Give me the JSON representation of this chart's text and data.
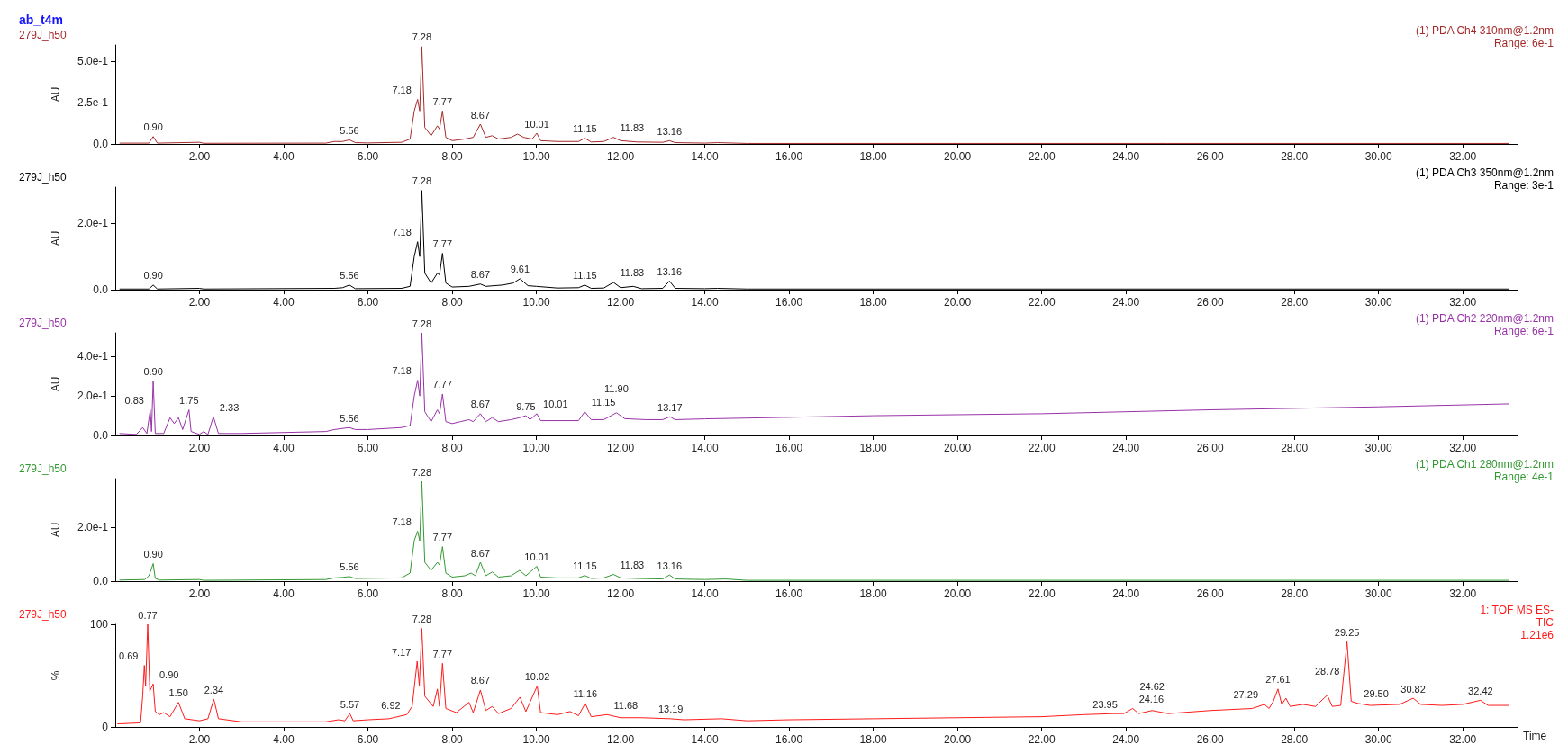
{
  "chart_data": [
    {
      "type": "line",
      "title": "ab_t4m",
      "subtitle": "279J_h50",
      "ylabel": "AU",
      "xlim": [
        0,
        33.3
      ],
      "ylim": [
        0,
        0.6
      ],
      "xticks": [
        {
          "value": 2,
          "label": "2.00"
        },
        {
          "value": 4,
          "label": "4.00"
        },
        {
          "value": 6,
          "label": "6.00"
        },
        {
          "value": 8,
          "label": "8.00"
        },
        {
          "value": 10,
          "label": "10.00"
        },
        {
          "value": 12,
          "label": "12.00"
        },
        {
          "value": 14,
          "label": "14.00"
        },
        {
          "value": 16,
          "label": "16.00"
        },
        {
          "value": 18,
          "label": "18.00"
        },
        {
          "value": 20,
          "label": "20.00"
        },
        {
          "value": 22,
          "label": "22.00"
        },
        {
          "value": 24,
          "label": "24.00"
        },
        {
          "value": 26,
          "label": "26.00"
        },
        {
          "value": 28,
          "label": "28.00"
        },
        {
          "value": 30,
          "label": "30.00"
        },
        {
          "value": 32,
          "label": "32.00"
        }
      ],
      "yticks": [
        {
          "value": 0,
          "label": "0.0"
        },
        {
          "value": 0.25,
          "label": "2.5e-1"
        },
        {
          "value": 0.5,
          "label": "5.0e-1"
        }
      ],
      "grid": false,
      "marker": "none",
      "line_style": "solid",
      "series": [
        {
          "color": "#a52a2a",
          "x": [
            0.1,
            0.8,
            0.9,
            1.0,
            2.0,
            2.1,
            5.0,
            5.2,
            5.4,
            5.56,
            5.7,
            6.0,
            6.8,
            7.0,
            7.1,
            7.18,
            7.23,
            7.28,
            7.35,
            7.5,
            7.65,
            7.7,
            7.77,
            7.85,
            8.0,
            8.3,
            8.5,
            8.67,
            8.8,
            8.95,
            9.1,
            9.4,
            9.55,
            9.7,
            9.9,
            10.01,
            10.1,
            10.5,
            11.0,
            11.15,
            11.3,
            11.6,
            11.83,
            12.0,
            12.4,
            13.0,
            13.16,
            13.3,
            14.0,
            14.3,
            15,
            20,
            25,
            33.1
          ],
          "values": [
            0.005,
            0.005,
            0.045,
            0.005,
            0.01,
            0.004,
            0.005,
            0.015,
            0.015,
            0.025,
            0.008,
            0.006,
            0.01,
            0.03,
            0.2,
            0.27,
            0.2,
            0.59,
            0.1,
            0.05,
            0.11,
            0.09,
            0.2,
            0.04,
            0.02,
            0.03,
            0.04,
            0.12,
            0.04,
            0.05,
            0.03,
            0.04,
            0.06,
            0.04,
            0.03,
            0.065,
            0.02,
            0.015,
            0.015,
            0.035,
            0.012,
            0.015,
            0.04,
            0.02,
            0.012,
            0.01,
            0.02,
            0.008,
            0.005,
            0.008,
            0.003,
            0.003,
            0.003,
            0.003
          ]
        }
      ],
      "annotations": [
        "(1) PDA Ch4 310nm@1.2nm",
        "Range: 6e-1",
        {
          "text": "0.90",
          "x": 0.9,
          "y": 0.045
        },
        {
          "text": "5.56",
          "x": 5.56,
          "y": 0.025
        },
        {
          "text": "7.18",
          "x": 7.18,
          "y": 0.27
        },
        {
          "text": "7.28",
          "x": 7.28,
          "y": 0.59
        },
        {
          "text": "7.77",
          "x": 7.77,
          "y": 0.2
        },
        {
          "text": "8.67",
          "x": 8.67,
          "y": 0.12
        },
        {
          "text": "10.01",
          "x": 10.01,
          "y": 0.065
        },
        {
          "text": "11.15",
          "x": 11.15,
          "y": 0.035
        },
        {
          "text": "11.83",
          "x": 11.83,
          "y": 0.04
        },
        {
          "text": "13.16",
          "x": 13.16,
          "y": 0.02
        }
      ]
    },
    {
      "type": "line",
      "subtitle": "279J_h50",
      "ylabel": "AU",
      "xlim": [
        0,
        33.3
      ],
      "ylim": [
        0,
        0.31
      ],
      "xticks": [
        {
          "value": 2,
          "label": "2.00"
        },
        {
          "value": 4,
          "label": "4.00"
        },
        {
          "value": 6,
          "label": "6.00"
        },
        {
          "value": 8,
          "label": "8.00"
        },
        {
          "value": 10,
          "label": "10.00"
        },
        {
          "value": 12,
          "label": "12.00"
        },
        {
          "value": 14,
          "label": "14.00"
        },
        {
          "value": 16,
          "label": "16.00"
        },
        {
          "value": 18,
          "label": "18.00"
        },
        {
          "value": 20,
          "label": "20.00"
        },
        {
          "value": 22,
          "label": "22.00"
        },
        {
          "value": 24,
          "label": "24.00"
        },
        {
          "value": 26,
          "label": "26.00"
        },
        {
          "value": 28,
          "label": "28.00"
        },
        {
          "value": 30,
          "label": "30.00"
        },
        {
          "value": 32,
          "label": "32.00"
        }
      ],
      "yticks": [
        {
          "value": 0,
          "label": "0.0"
        },
        {
          "value": 0.2,
          "label": "2.0e-1"
        }
      ],
      "grid": false,
      "marker": "none",
      "line_style": "solid",
      "series": [
        {
          "color": "#000000",
          "x": [
            0.1,
            0.8,
            0.9,
            1.0,
            2.0,
            2.1,
            5.2,
            5.4,
            5.56,
            5.7,
            6.8,
            7.0,
            7.1,
            7.18,
            7.23,
            7.28,
            7.35,
            7.5,
            7.65,
            7.7,
            7.77,
            7.85,
            8.0,
            8.4,
            8.67,
            8.8,
            9.2,
            9.45,
            9.61,
            9.8,
            10.0,
            10.5,
            11.0,
            11.15,
            11.3,
            11.6,
            11.83,
            12.0,
            12.3,
            12.5,
            13.0,
            13.16,
            13.3,
            14.0,
            14.3,
            15,
            33.1
          ],
          "values": [
            0.002,
            0.002,
            0.014,
            0.002,
            0.004,
            0.002,
            0.004,
            0.006,
            0.014,
            0.003,
            0.004,
            0.01,
            0.1,
            0.145,
            0.1,
            0.3,
            0.05,
            0.02,
            0.05,
            0.045,
            0.11,
            0.02,
            0.008,
            0.01,
            0.017,
            0.01,
            0.014,
            0.02,
            0.033,
            0.012,
            0.01,
            0.005,
            0.006,
            0.014,
            0.004,
            0.005,
            0.022,
            0.006,
            0.01,
            0.003,
            0.004,
            0.026,
            0.004,
            0.003,
            0.004,
            0.002,
            0.002
          ]
        }
      ],
      "annotations": [
        "(1) PDA Ch3 350nm@1.2nm",
        "Range: 3e-1",
        {
          "text": "0.90",
          "x": 0.9,
          "y": 0.014
        },
        {
          "text": "5.56",
          "x": 5.56,
          "y": 0.014
        },
        {
          "text": "7.18",
          "x": 7.18,
          "y": 0.145
        },
        {
          "text": "7.28",
          "x": 7.28,
          "y": 0.3
        },
        {
          "text": "7.77",
          "x": 7.77,
          "y": 0.11
        },
        {
          "text": "8.67",
          "x": 8.67,
          "y": 0.017
        },
        {
          "text": "9.61",
          "x": 9.61,
          "y": 0.033
        },
        {
          "text": "11.15",
          "x": 11.15,
          "y": 0.014
        },
        {
          "text": "11.83",
          "x": 11.83,
          "y": 0.022
        },
        {
          "text": "13.16",
          "x": 13.16,
          "y": 0.026
        }
      ]
    },
    {
      "type": "line",
      "subtitle": "279J_h50",
      "ylabel": "AU",
      "xlim": [
        0,
        33.3
      ],
      "ylim": [
        0,
        0.52
      ],
      "xticks": [
        {
          "value": 2,
          "label": "2.00"
        },
        {
          "value": 4,
          "label": "4.00"
        },
        {
          "value": 6,
          "label": "6.00"
        },
        {
          "value": 8,
          "label": "8.00"
        },
        {
          "value": 10,
          "label": "10.00"
        },
        {
          "value": 12,
          "label": "12.00"
        },
        {
          "value": 14,
          "label": "14.00"
        },
        {
          "value": 16,
          "label": "16.00"
        },
        {
          "value": 18,
          "label": "18.00"
        },
        {
          "value": 20,
          "label": "20.00"
        },
        {
          "value": 22,
          "label": "22.00"
        },
        {
          "value": 24,
          "label": "24.00"
        },
        {
          "value": 26,
          "label": "26.00"
        },
        {
          "value": 28,
          "label": "28.00"
        },
        {
          "value": 30,
          "label": "30.00"
        },
        {
          "value": 32,
          "label": "32.00"
        }
      ],
      "yticks": [
        {
          "value": 0,
          "label": "0.0"
        },
        {
          "value": 0.2,
          "label": "2.0e-1"
        },
        {
          "value": 0.4,
          "label": "4.0e-1"
        }
      ],
      "grid": false,
      "marker": "none",
      "line_style": "solid",
      "series": [
        {
          "color": "#9932a8",
          "x": [
            0.1,
            0.5,
            0.65,
            0.75,
            0.83,
            0.86,
            0.9,
            0.95,
            1.15,
            1.3,
            1.4,
            1.5,
            1.6,
            1.75,
            1.8,
            2.0,
            2.1,
            2.2,
            2.33,
            2.45,
            3.0,
            4.0,
            5.0,
            5.2,
            5.56,
            5.7,
            6.0,
            6.8,
            7.0,
            7.1,
            7.18,
            7.23,
            7.28,
            7.35,
            7.5,
            7.65,
            7.7,
            7.77,
            7.85,
            8.0,
            8.2,
            8.4,
            8.5,
            8.67,
            8.8,
            8.95,
            9.1,
            9.4,
            9.6,
            9.75,
            9.85,
            10.01,
            10.1,
            10.5,
            11.0,
            11.15,
            11.3,
            11.6,
            11.9,
            12.1,
            12.6,
            13.0,
            13.17,
            13.3,
            14.0,
            18,
            22,
            26,
            30,
            33.1
          ],
          "values": [
            0.01,
            0.005,
            0.04,
            0.01,
            0.13,
            0.02,
            0.275,
            0.01,
            0.01,
            0.09,
            0.06,
            0.09,
            0.03,
            0.13,
            0.02,
            0.005,
            0.02,
            0.005,
            0.095,
            0.01,
            0.01,
            0.015,
            0.02,
            0.03,
            0.04,
            0.03,
            0.03,
            0.04,
            0.05,
            0.2,
            0.28,
            0.2,
            0.52,
            0.12,
            0.07,
            0.13,
            0.11,
            0.21,
            0.07,
            0.06,
            0.07,
            0.08,
            0.07,
            0.11,
            0.07,
            0.09,
            0.07,
            0.08,
            0.09,
            0.1,
            0.08,
            0.11,
            0.075,
            0.075,
            0.075,
            0.12,
            0.08,
            0.08,
            0.115,
            0.085,
            0.08,
            0.08,
            0.095,
            0.08,
            0.084,
            0.1,
            0.11,
            0.13,
            0.145,
            0.16
          ]
        }
      ],
      "annotations": [
        "(1) PDA Ch2 220nm@1.2nm",
        "Range: 6e-1",
        {
          "text": "0.83",
          "x": 0.83,
          "y": 0.13
        },
        {
          "text": "0.90",
          "x": 0.9,
          "y": 0.275
        },
        {
          "text": "1.75",
          "x": 1.75,
          "y": 0.13
        },
        {
          "text": "2.33",
          "x": 2.33,
          "y": 0.095
        },
        {
          "text": "5.56",
          "x": 5.56,
          "y": 0.04
        },
        {
          "text": "7.18",
          "x": 7.18,
          "y": 0.28
        },
        {
          "text": "7.28",
          "x": 7.28,
          "y": 0.52
        },
        {
          "text": "7.77",
          "x": 7.77,
          "y": 0.21
        },
        {
          "text": "8.67",
          "x": 8.67,
          "y": 0.11
        },
        {
          "text": "9.75",
          "x": 9.75,
          "y": 0.1
        },
        {
          "text": "10.01",
          "x": 10.01,
          "y": 0.11
        },
        {
          "text": "11.15",
          "x": 11.15,
          "y": 0.12
        },
        {
          "text": "11.90",
          "x": 11.9,
          "y": 0.115
        },
        {
          "text": "13.17",
          "x": 13.17,
          "y": 0.095
        }
      ]
    },
    {
      "type": "line",
      "subtitle": "279J_h50",
      "ylabel": "AU",
      "xlim": [
        0,
        33.3
      ],
      "ylim": [
        0,
        0.38
      ],
      "xticks": [
        {
          "value": 2,
          "label": "2.00"
        },
        {
          "value": 4,
          "label": "4.00"
        },
        {
          "value": 6,
          "label": "6.00"
        },
        {
          "value": 8,
          "label": "8.00"
        },
        {
          "value": 10,
          "label": "10.00"
        },
        {
          "value": 12,
          "label": "12.00"
        },
        {
          "value": 14,
          "label": "14.00"
        },
        {
          "value": 16,
          "label": "16.00"
        },
        {
          "value": 18,
          "label": "18.00"
        },
        {
          "value": 20,
          "label": "20.00"
        },
        {
          "value": 22,
          "label": "22.00"
        },
        {
          "value": 24,
          "label": "24.00"
        },
        {
          "value": 26,
          "label": "26.00"
        },
        {
          "value": 28,
          "label": "28.00"
        },
        {
          "value": 30,
          "label": "30.00"
        },
        {
          "value": 32,
          "label": "32.00"
        }
      ],
      "yticks": [
        {
          "value": 0,
          "label": "0.0"
        },
        {
          "value": 0.2,
          "label": "2.0e-1"
        }
      ],
      "grid": false,
      "marker": "none",
      "line_style": "solid",
      "series": [
        {
          "color": "#339933",
          "x": [
            0.1,
            0.7,
            0.8,
            0.9,
            0.95,
            1.05,
            2.0,
            2.1,
            5.0,
            5.2,
            5.4,
            5.56,
            5.7,
            6.8,
            7.0,
            7.1,
            7.18,
            7.23,
            7.28,
            7.35,
            7.5,
            7.65,
            7.7,
            7.77,
            7.85,
            8.0,
            8.3,
            8.45,
            8.55,
            8.67,
            8.8,
            8.95,
            9.1,
            9.4,
            9.6,
            9.75,
            10.01,
            10.1,
            10.5,
            11.0,
            11.15,
            11.3,
            11.6,
            11.83,
            12.0,
            12.4,
            13.0,
            13.16,
            13.3,
            14.0,
            14.5,
            15,
            33.1
          ],
          "values": [
            0.004,
            0.006,
            0.02,
            0.065,
            0.01,
            0.004,
            0.006,
            0.003,
            0.006,
            0.012,
            0.014,
            0.017,
            0.01,
            0.012,
            0.03,
            0.15,
            0.185,
            0.15,
            0.37,
            0.07,
            0.04,
            0.07,
            0.06,
            0.128,
            0.03,
            0.015,
            0.02,
            0.03,
            0.02,
            0.07,
            0.02,
            0.034,
            0.015,
            0.02,
            0.04,
            0.02,
            0.055,
            0.015,
            0.012,
            0.012,
            0.021,
            0.01,
            0.012,
            0.025,
            0.012,
            0.01,
            0.008,
            0.023,
            0.008,
            0.006,
            0.008,
            0.003,
            0.003
          ]
        }
      ],
      "annotations": [
        "(1) PDA Ch1 280nm@1.2nm",
        "Range: 4e-1",
        {
          "text": "0.90",
          "x": 0.9,
          "y": 0.065
        },
        {
          "text": "5.56",
          "x": 5.56,
          "y": 0.017
        },
        {
          "text": "7.18",
          "x": 7.18,
          "y": 0.185
        },
        {
          "text": "7.28",
          "x": 7.28,
          "y": 0.37
        },
        {
          "text": "7.77",
          "x": 7.77,
          "y": 0.128
        },
        {
          "text": "8.67",
          "x": 8.67,
          "y": 0.07
        },
        {
          "text": "10.01",
          "x": 10.01,
          "y": 0.055
        },
        {
          "text": "11.15",
          "x": 11.15,
          "y": 0.021
        },
        {
          "text": "11.83",
          "x": 11.83,
          "y": 0.025
        },
        {
          "text": "13.16",
          "x": 13.16,
          "y": 0.023
        }
      ]
    },
    {
      "type": "line",
      "subtitle": "279J_h50",
      "ylabel": "%",
      "xlabel": "Time",
      "xlim": [
        0,
        33.3
      ],
      "ylim": [
        0,
        100
      ],
      "xticks": [
        {
          "value": 2,
          "label": "2.00"
        },
        {
          "value": 4,
          "label": "4.00"
        },
        {
          "value": 6,
          "label": "6.00"
        },
        {
          "value": 8,
          "label": "8.00"
        },
        {
          "value": 10,
          "label": "10.00"
        },
        {
          "value": 12,
          "label": "12.00"
        },
        {
          "value": 14,
          "label": "14.00"
        },
        {
          "value": 16,
          "label": "16.00"
        },
        {
          "value": 18,
          "label": "18.00"
        },
        {
          "value": 20,
          "label": "20.00"
        },
        {
          "value": 22,
          "label": "22.00"
        },
        {
          "value": 24,
          "label": "24.00"
        },
        {
          "value": 26,
          "label": "26.00"
        },
        {
          "value": 28,
          "label": "28.00"
        },
        {
          "value": 30,
          "label": "30.00"
        },
        {
          "value": 32,
          "label": "32.00"
        }
      ],
      "yticks": [
        0,
        100
      ],
      "grid": false,
      "marker": "none",
      "line_style": "solid",
      "series": [
        {
          "color": "#ff1a1a",
          "x": [
            0.05,
            0.6,
            0.65,
            0.69,
            0.72,
            0.77,
            0.82,
            0.9,
            0.95,
            1.05,
            1.15,
            1.3,
            1.5,
            1.65,
            2.0,
            2.2,
            2.34,
            2.45,
            3.0,
            4.0,
            5.0,
            5.3,
            5.45,
            5.57,
            5.65,
            6.0,
            6.5,
            6.92,
            7.05,
            7.17,
            7.22,
            7.28,
            7.35,
            7.55,
            7.65,
            7.7,
            7.77,
            7.85,
            8.1,
            8.4,
            8.5,
            8.67,
            8.8,
            8.95,
            9.1,
            9.4,
            9.61,
            9.75,
            10.02,
            10.1,
            10.5,
            10.8,
            11.0,
            11.16,
            11.3,
            11.68,
            12.0,
            12.5,
            13.19,
            13.5,
            14.4,
            15,
            16,
            18,
            20,
            22,
            23,
            23.7,
            23.95,
            24.16,
            24.3,
            24.62,
            24.75,
            25,
            26,
            27,
            27.29,
            27.4,
            27.5,
            27.61,
            27.7,
            27.8,
            27.9,
            28.2,
            28.5,
            28.78,
            28.9,
            29.1,
            29.25,
            29.35,
            29.5,
            29.8,
            30.5,
            30.82,
            31.0,
            31.5,
            32.0,
            32.42,
            32.6,
            33.1
          ],
          "values": [
            3,
            4,
            30,
            60,
            40,
            100,
            35,
            42,
            15,
            12,
            14,
            10,
            24,
            8,
            6,
            8,
            27,
            8,
            5,
            5,
            5,
            7,
            6,
            13,
            6,
            7,
            8,
            12,
            20,
            64,
            40,
            96,
            30,
            20,
            37,
            20,
            62,
            18,
            14,
            24,
            14,
            36,
            16,
            20,
            13,
            18,
            29,
            15,
            40,
            14,
            12,
            15,
            11,
            23,
            10,
            12,
            9,
            9,
            8,
            7,
            8,
            6,
            7,
            8,
            9,
            10,
            12,
            13,
            13,
            18,
            13,
            16,
            15,
            13,
            16,
            18,
            22,
            18,
            25,
            37,
            22,
            28,
            20,
            22,
            20,
            31,
            20,
            21,
            83,
            25,
            23,
            21,
            22,
            28,
            22,
            21,
            22,
            26,
            21,
            21
          ]
        }
      ],
      "annotations": [
        "1: TOF MS ES-",
        "TIC",
        "1.21e6",
        {
          "text": "0.69",
          "x": 0.69,
          "y": 60
        },
        {
          "text": "0.77",
          "x": 0.77,
          "y": 100
        },
        {
          "text": "0.90",
          "x": 0.9,
          "y": 42
        },
        {
          "text": "1.50",
          "x": 1.5,
          "y": 24
        },
        {
          "text": "2.34",
          "x": 2.34,
          "y": 27
        },
        {
          "text": "5.57",
          "x": 5.57,
          "y": 13
        },
        {
          "text": "6.92",
          "x": 6.92,
          "y": 12
        },
        {
          "text": "7.17",
          "x": 7.17,
          "y": 64
        },
        {
          "text": "7.28",
          "x": 7.28,
          "y": 96
        },
        {
          "text": "7.77",
          "x": 7.77,
          "y": 62
        },
        {
          "text": "8.67",
          "x": 8.67,
          "y": 36
        },
        {
          "text": "10.02",
          "x": 10.02,
          "y": 40
        },
        {
          "text": "11.16",
          "x": 11.16,
          "y": 23
        },
        {
          "text": "11.68",
          "x": 11.68,
          "y": 12
        },
        {
          "text": "13.19",
          "x": 13.19,
          "y": 8
        },
        {
          "text": "23.95",
          "x": 23.95,
          "y": 13
        },
        {
          "text": "24.16",
          "x": 24.16,
          "y": 18
        },
        {
          "text": "24.62",
          "x": 24.62,
          "y": 16
        },
        {
          "text": "27.29",
          "x": 27.29,
          "y": 22
        },
        {
          "text": "27.61",
          "x": 27.61,
          "y": 37
        },
        {
          "text": "28.78",
          "x": 28.78,
          "y": 31
        },
        {
          "text": "29.25",
          "x": 29.25,
          "y": 83
        },
        {
          "text": "29.50",
          "x": 29.5,
          "y": 23
        },
        {
          "text": "30.82",
          "x": 30.82,
          "y": 28
        },
        {
          "text": "32.42",
          "x": 32.42,
          "y": 26
        }
      ]
    }
  ]
}
